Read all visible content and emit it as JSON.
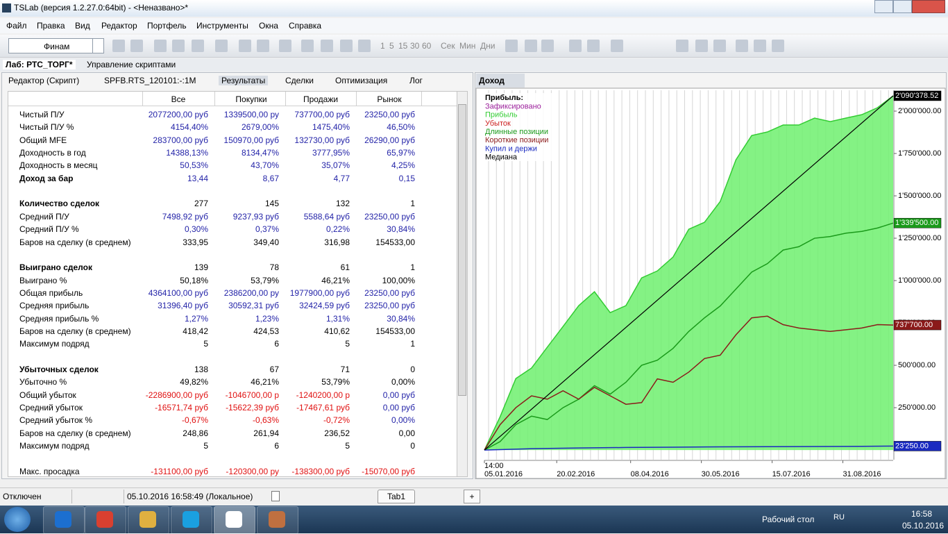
{
  "window": {
    "title": "TSLab (версия 1.2.27.0:64bit) - <Неназвано>*"
  },
  "menu": [
    "Файл",
    "Правка",
    "Вид",
    "Редактор",
    "Портфель",
    "Инструменты",
    "Окна",
    "Справка"
  ],
  "toolbar": {
    "connector": "Финам",
    "intervals": [
      "1",
      "5",
      "15",
      "30",
      "60"
    ],
    "units": [
      "Сек",
      "Мин",
      "Дни"
    ]
  },
  "tabs": [
    "Лаб: РТС_ТОРГ*",
    "Управление скриптами"
  ],
  "left_panel": {
    "tabs": [
      "Редактор (Скрипт)",
      "SPFB.RTS_120101:-:1M",
      "Результаты",
      "Сделки",
      "Оптимизация",
      "Лог"
    ],
    "table": {
      "columns": [
        "Все",
        "Покупки",
        "Продажи",
        "Рынок"
      ],
      "groups": [
        [
          {
            "label": "Чистый П/У",
            "values": [
              "2077200,00 руб",
              "1339500,00 ру",
              "737700,00 руб",
              "23250,00 руб"
            ],
            "color": "#2323a8"
          },
          {
            "label": "Чистый П/У %",
            "values": [
              "4154,40%",
              "2679,00%",
              "1475,40%",
              "46,50%"
            ],
            "color": "#2323a8"
          },
          {
            "label": "Общий MFE",
            "values": [
              "283700,00 руб",
              "150970,00 руб",
              "132730,00 руб",
              "26290,00 руб"
            ],
            "color": "#2323a8"
          },
          {
            "label": "Доходность в год",
            "values": [
              "14388,13%",
              "8134,47%",
              "3777,95%",
              "65,97%"
            ],
            "color": "#2323a8"
          },
          {
            "label": "Доходность в месяц",
            "values": [
              "50,53%",
              "43,70%",
              "35,07%",
              "4,25%"
            ],
            "color": "#2323a8"
          },
          {
            "label": "Доход за бар",
            "values": [
              "13,44",
              "8,67",
              "4,77",
              "0,15"
            ],
            "color": "#2323a8",
            "bold": true
          }
        ],
        [
          {
            "label": "Количество сделок",
            "values": [
              "277",
              "145",
              "132",
              "1"
            ],
            "color": "#000000",
            "bold": true
          },
          {
            "label": "Средний П/У",
            "values": [
              "7498,92 руб",
              "9237,93 руб",
              "5588,64 руб",
              "23250,00 руб"
            ],
            "color": "#2323a8"
          },
          {
            "label": "Средний П/У %",
            "values": [
              "0,30%",
              "0,37%",
              "0,22%",
              "30,84%"
            ],
            "color": "#2323a8"
          },
          {
            "label": "Баров на сделку (в среднем)",
            "values": [
              "333,95",
              "349,40",
              "316,98",
              "154533,00"
            ],
            "color": "#000000"
          }
        ],
        [
          {
            "label": "Выиграно сделок",
            "values": [
              "139",
              "78",
              "61",
              "1"
            ],
            "color": "#000000",
            "bold": true
          },
          {
            "label": "Выиграно %",
            "values": [
              "50,18%",
              "53,79%",
              "46,21%",
              "100,00%"
            ],
            "color": "#000000"
          },
          {
            "label": "Общая прибыль",
            "values": [
              "4364100,00 руб",
              "2386200,00 ру",
              "1977900,00 руб",
              "23250,00 руб"
            ],
            "color": "#2323a8"
          },
          {
            "label": "Средняя прибыль",
            "values": [
              "31396,40 руб",
              "30592,31 руб",
              "32424,59 руб",
              "23250,00 руб"
            ],
            "color": "#2323a8"
          },
          {
            "label": "Средняя прибыль %",
            "values": [
              "1,27%",
              "1,23%",
              "1,31%",
              "30,84%"
            ],
            "color": "#2323a8"
          },
          {
            "label": "Баров на сделку (в среднем)",
            "values": [
              "418,42",
              "424,53",
              "410,62",
              "154533,00"
            ],
            "color": "#000000"
          },
          {
            "label": "Максимум подряд",
            "values": [
              "5",
              "6",
              "5",
              "1"
            ],
            "color": "#000000"
          }
        ],
        [
          {
            "label": "Убыточных сделок",
            "values": [
              "138",
              "67",
              "71",
              "0"
            ],
            "color": "#000000",
            "bold": true
          },
          {
            "label": "Убыточно %",
            "values": [
              "49,82%",
              "46,21%",
              "53,79%",
              "0,00%"
            ],
            "color": "#000000"
          },
          {
            "label": "Общий убыток",
            "values": [
              "-2286900,00 руб",
              "-1046700,00 р",
              "-1240200,00 р",
              "0,00 руб"
            ],
            "color": "#e01010",
            "last_color": "#2323a8"
          },
          {
            "label": "Средний убыток",
            "values": [
              "-16571,74 руб",
              "-15622,39 руб",
              "-17467,61 руб",
              "0,00 руб"
            ],
            "color": "#e01010",
            "last_color": "#2323a8"
          },
          {
            "label": "Средний убыток %",
            "values": [
              "-0,67%",
              "-0,63%",
              "-0,72%",
              "0,00%"
            ],
            "color": "#e01010",
            "last_color": "#2323a8"
          },
          {
            "label": "Баров на сделку (в среднем)",
            "values": [
              "248,86",
              "261,94",
              "236,52",
              "0,00"
            ],
            "color": "#000000"
          },
          {
            "label": "Максимум подряд",
            "values": [
              "5",
              "6",
              "5",
              "0"
            ],
            "color": "#000000"
          }
        ],
        [
          {
            "label": "Макс. просадка",
            "values": [
              "-131100,00 руб",
              "-120300,00 ру",
              "-138300,00 руб",
              "-15070,00 руб"
            ],
            "color": "#e01010"
          }
        ]
      ]
    }
  },
  "chart_data": {
    "type": "line",
    "title": "Доход",
    "legend_title": "Прибыль:",
    "x_sublabel": "14:00",
    "xlim": [
      4,
      264
    ],
    "xticks": [
      {
        "value": 4,
        "label": "05.01.2016"
      },
      {
        "value": 50,
        "label": "20.02.2016"
      },
      {
        "value": 97,
        "label": "08.04.2016"
      },
      {
        "value": 142,
        "label": "30.05.2016"
      },
      {
        "value": 187,
        "label": "15.07.2016"
      },
      {
        "value": 232,
        "label": "31.08.2016"
      }
    ],
    "ylim": [
      -57000,
      2123000
    ],
    "yticks": [
      {
        "value": 250000,
        "label": "250'000.00"
      },
      {
        "value": 500000,
        "label": "500'000.00"
      },
      {
        "value": 750000,
        "label": "750'000.00"
      },
      {
        "value": 1000000,
        "label": "1'000'000.00"
      },
      {
        "value": 1250000,
        "label": "1'250'000.00"
      },
      {
        "value": 1500000,
        "label": "1'500'000.00"
      },
      {
        "value": 1750000,
        "label": "1'750'000.00"
      },
      {
        "value": 2000000,
        "label": "2'000'000.00"
      }
    ],
    "series": [
      {
        "name": "Зафиксировано",
        "color": "#9b1f9b",
        "x": [],
        "values": []
      },
      {
        "name": "Прибыль",
        "color": "#33cc33",
        "fill": "#6ff06f",
        "label_bg": "#000000",
        "x": [
          4,
          14,
          24,
          34,
          44,
          54,
          64,
          74,
          84,
          94,
          104,
          114,
          124,
          134,
          144,
          154,
          164,
          174,
          184,
          194,
          204,
          214,
          224,
          234,
          244,
          254,
          264
        ],
        "values": [
          0,
          197000,
          422000,
          484000,
          607000,
          729000,
          852000,
          934000,
          811000,
          852000,
          1016000,
          1057000,
          1139000,
          1303000,
          1344000,
          1467000,
          1713000,
          1856000,
          1877000,
          1918000,
          1918000,
          1959000,
          1938000,
          1959000,
          1979000,
          2020000,
          2090378.52
        ],
        "value_labels": [
          null,
          null,
          null,
          null,
          null,
          null,
          null,
          null,
          null,
          null,
          null,
          null,
          null,
          null,
          null,
          null,
          null,
          null,
          null,
          null,
          null,
          null,
          null,
          null,
          null,
          null,
          "2'090'378.52"
        ]
      },
      {
        "name": "Убыток",
        "color": "#cc2020",
        "x": [],
        "values": []
      },
      {
        "name": "Длинные позиции",
        "color": "#1a9a1a",
        "label_bg": "#1a9a1a",
        "x": [
          4,
          14,
          24,
          34,
          44,
          54,
          64,
          74,
          84,
          94,
          104,
          114,
          124,
          134,
          144,
          154,
          164,
          174,
          184,
          194,
          204,
          214,
          224,
          234,
          244,
          254,
          264
        ],
        "values": [
          0,
          50000,
          150000,
          200000,
          180000,
          250000,
          300000,
          380000,
          330000,
          400000,
          500000,
          530000,
          600000,
          700000,
          780000,
          850000,
          950000,
          1050000,
          1100000,
          1180000,
          1200000,
          1250000,
          1260000,
          1280000,
          1290000,
          1310000,
          1339500
        ],
        "value_labels": [
          null,
          null,
          null,
          null,
          null,
          null,
          null,
          null,
          null,
          null,
          null,
          null,
          null,
          null,
          null,
          null,
          null,
          null,
          null,
          null,
          null,
          null,
          null,
          null,
          null,
          null,
          "1'339'500.00"
        ]
      },
      {
        "name": "Короткие позиции",
        "color": "#8b1a1a",
        "label_bg": "#8b1a1a",
        "x": [
          4,
          14,
          24,
          34,
          44,
          54,
          64,
          74,
          84,
          94,
          104,
          114,
          124,
          134,
          144,
          154,
          164,
          174,
          184,
          194,
          204,
          214,
          224,
          234,
          244,
          254,
          264
        ],
        "values": [
          0,
          150000,
          250000,
          320000,
          300000,
          350000,
          300000,
          370000,
          320000,
          270000,
          280000,
          420000,
          400000,
          460000,
          540000,
          560000,
          680000,
          780000,
          790000,
          740000,
          720000,
          710000,
          700000,
          710000,
          720000,
          740000,
          737700
        ],
        "value_labels": [
          null,
          null,
          null,
          null,
          null,
          null,
          null,
          null,
          null,
          null,
          null,
          null,
          null,
          null,
          null,
          null,
          null,
          null,
          null,
          null,
          null,
          null,
          null,
          null,
          null,
          null,
          "737'700.00"
        ]
      },
      {
        "name": "Купил и держи",
        "color": "#1a2ac0",
        "label_bg": "#1a2ac0",
        "x": [
          4,
          34,
          64,
          94,
          124,
          154,
          184,
          214,
          244,
          264
        ],
        "values": [
          0,
          8000,
          12000,
          15000,
          17000,
          19000,
          20000,
          21000,
          22000,
          23250
        ],
        "value_labels": [
          null,
          null,
          null,
          null,
          null,
          null,
          null,
          null,
          null,
          "23'250.00"
        ]
      },
      {
        "name": "Медиана",
        "color": "#000000",
        "x": [
          4,
          264
        ],
        "values": [
          0,
          2090378.52
        ]
      }
    ]
  },
  "status_bar": {
    "state": "Отключен",
    "clock": "05.10.2016 16:58:49 (Локальное)",
    "tab": "Tab1",
    "add": "+"
  },
  "taskbar": {
    "desktop": "Рабочий стол",
    "lang": "RU",
    "time": "16:58",
    "date": "05.10.2016"
  }
}
